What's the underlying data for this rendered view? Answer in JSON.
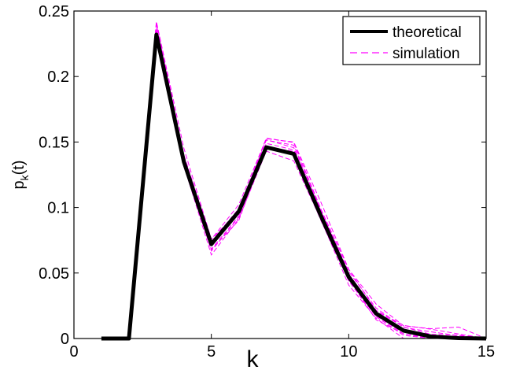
{
  "chart_data": {
    "type": "line",
    "xlabel": "k",
    "ylabel": "p",
    "ylabel_sub": "k",
    "ylabel_suffix": "(t)",
    "xlim": [
      0,
      15
    ],
    "ylim": [
      0,
      0.25
    ],
    "x_ticks": [
      0,
      5,
      10,
      15
    ],
    "x_tick_labels": [
      "0",
      "5",
      "10",
      "15"
    ],
    "y_ticks": [
      0,
      0.05,
      0.1,
      0.15,
      0.2,
      0.25
    ],
    "y_tick_labels": [
      "0",
      "0.05",
      "0.1",
      "0.15",
      "0.2",
      "0.25"
    ],
    "grid": false,
    "legend_position": "top-right",
    "series": [
      {
        "name": "theoretical",
        "style": "solid",
        "color": "#000000",
        "x": [
          1,
          2,
          3,
          4,
          5,
          6,
          7,
          8,
          9,
          10,
          11,
          12,
          13,
          14,
          15
        ],
        "y": [
          0,
          0,
          0.232,
          0.135,
          0.072,
          0.097,
          0.146,
          0.141,
          0.093,
          0.047,
          0.019,
          0.006,
          0.0015,
          0.0003,
          0
        ]
      },
      {
        "name": "simulation",
        "style": "dashed",
        "color": "#ff00ff",
        "x": [
          1,
          2,
          3,
          4,
          5,
          6,
          7,
          8,
          9,
          10,
          11,
          12,
          13,
          14,
          15
        ],
        "y": [
          0,
          0,
          0.236,
          0.137,
          0.071,
          0.095,
          0.149,
          0.144,
          0.095,
          0.048,
          0.019,
          0.006,
          0.0015,
          0.0003,
          0
        ]
      }
    ]
  }
}
